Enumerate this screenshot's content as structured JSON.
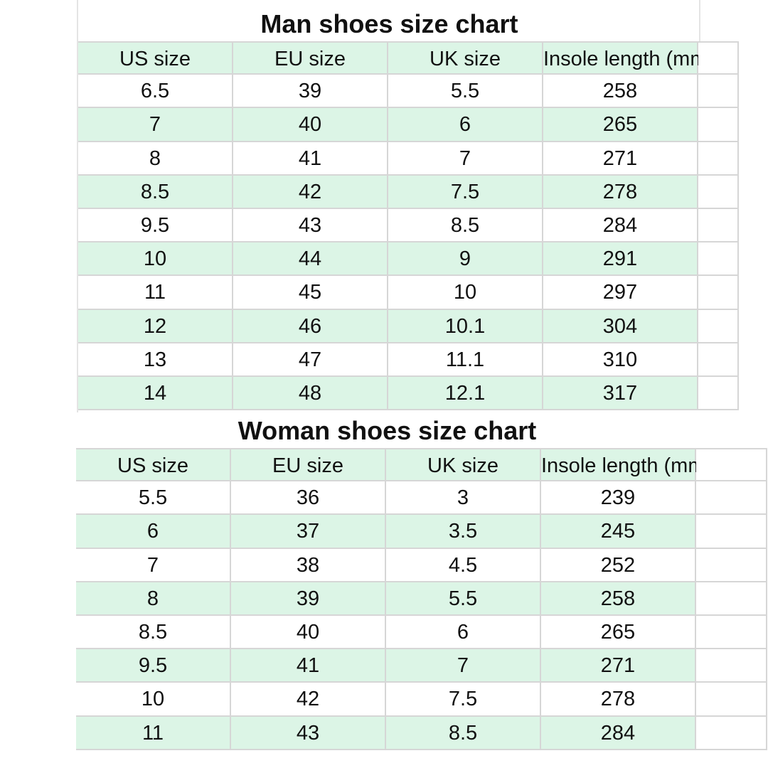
{
  "men": {
    "title": "Man shoes size chart",
    "headers": [
      "US size",
      "EU size",
      "UK size",
      "Insole length (mm)"
    ],
    "rows": [
      [
        "6.5",
        "39",
        "5.5",
        "258"
      ],
      [
        "7",
        "40",
        "6",
        "265"
      ],
      [
        "8",
        "41",
        "7",
        "271"
      ],
      [
        "8.5",
        "42",
        "7.5",
        "278"
      ],
      [
        "9.5",
        "43",
        "8.5",
        "284"
      ],
      [
        "10",
        "44",
        "9",
        "291"
      ],
      [
        "11",
        "45",
        "10",
        "297"
      ],
      [
        "12",
        "46",
        "10.1",
        "304"
      ],
      [
        "13",
        "47",
        "11.1",
        "310"
      ],
      [
        "14",
        "48",
        "12.1",
        "317"
      ]
    ]
  },
  "women": {
    "title": "Woman shoes size chart",
    "headers": [
      "US size",
      "EU size",
      "UK size",
      "Insole length (mm)"
    ],
    "rows": [
      [
        "5.5",
        "36",
        "3",
        "239"
      ],
      [
        "6",
        "37",
        "3.5",
        "245"
      ],
      [
        "7",
        "38",
        "4.5",
        "252"
      ],
      [
        "8",
        "39",
        "5.5",
        "258"
      ],
      [
        "8.5",
        "40",
        "6",
        "265"
      ],
      [
        "9.5",
        "41",
        "7",
        "271"
      ],
      [
        "10",
        "42",
        "7.5",
        "278"
      ],
      [
        "11",
        "43",
        "8.5",
        "284"
      ]
    ]
  },
  "colors": {
    "row_highlight": "#dcf5e6",
    "grid": "#d6d6d6"
  }
}
